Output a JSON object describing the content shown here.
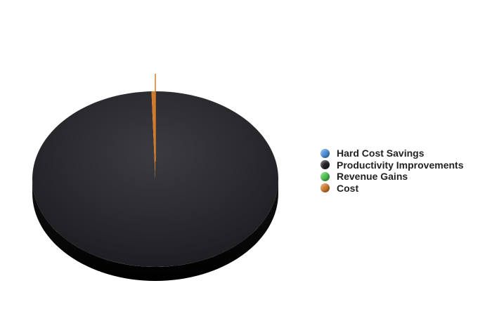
{
  "chart_data": {
    "type": "pie",
    "title": "",
    "categories": [
      "Hard Cost Savings",
      "Productivity Improvements",
      "Revenue Gains",
      "Cost"
    ],
    "values": [
      0,
      99.5,
      0,
      0.5
    ],
    "colors": [
      "#4a90d9",
      "#222226",
      "#4cc44c",
      "#d07a2c"
    ],
    "legend_position": "right",
    "style": "3d"
  }
}
